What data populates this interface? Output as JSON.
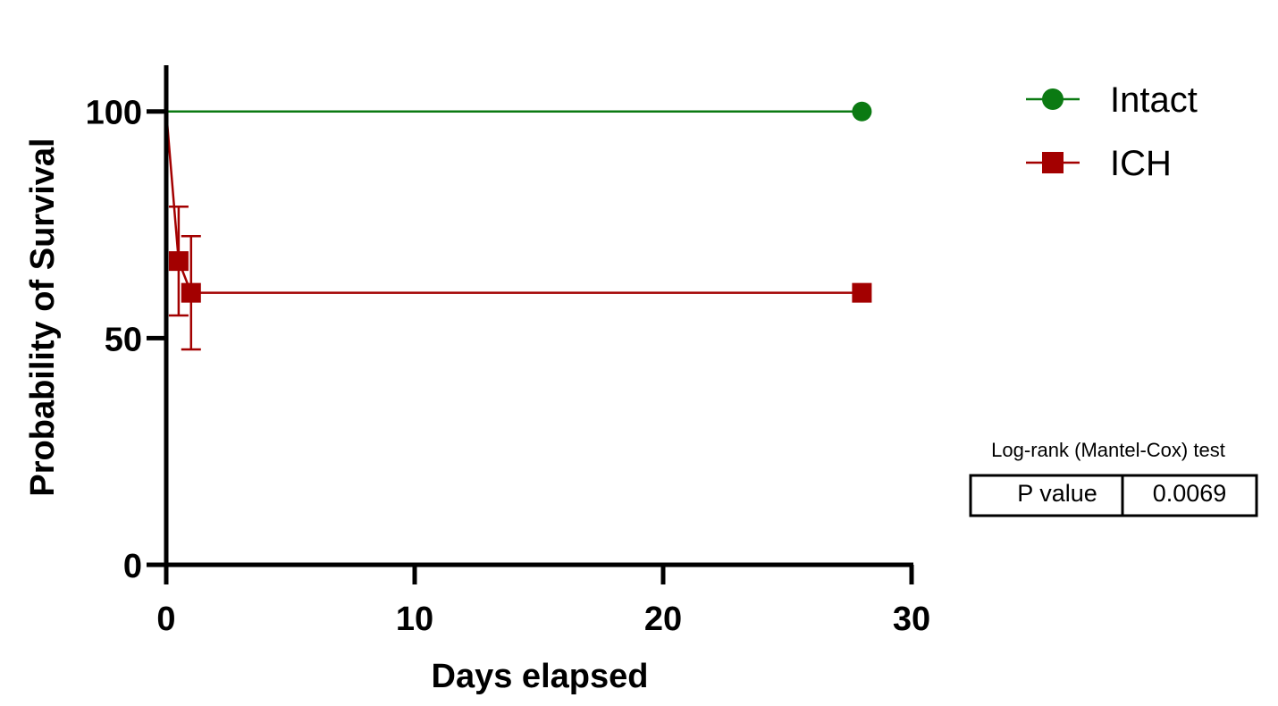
{
  "chart_data": {
    "type": "line",
    "style": "kaplan-meier step survival curve",
    "xlabel": "Days elapsed",
    "ylabel": "Probability of Survival",
    "xlim": [
      0,
      30
    ],
    "ylim": [
      0,
      110
    ],
    "xticks": [
      "0",
      "10",
      "20",
      "30"
    ],
    "yticks": [
      "0",
      "50",
      "100"
    ],
    "grid": false,
    "legend_position": "top-right",
    "series": [
      {
        "name": "Intact",
        "color": "#0b7a12",
        "marker": "circle",
        "points": [
          {
            "x": 0,
            "y": 100
          },
          {
            "x": 28,
            "y": 100
          }
        ]
      },
      {
        "name": "ICH",
        "color": "#a30000",
        "marker": "square",
        "points": [
          {
            "x": 0,
            "y": 100
          },
          {
            "x": 0.5,
            "y": 67,
            "err_low": 55,
            "err_high": 79
          },
          {
            "x": 1,
            "y": 60,
            "err_low": 47.5,
            "err_high": 72.5
          },
          {
            "x": 28,
            "y": 60
          }
        ]
      }
    ],
    "stats": {
      "title": "Log-rank (Mantel-Cox) test",
      "label": "P value",
      "value": "0.0069"
    }
  }
}
